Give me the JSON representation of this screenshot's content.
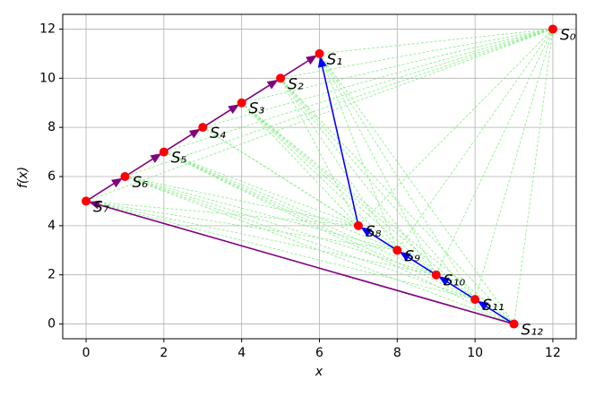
{
  "chart_data": {
    "type": "scatter",
    "x_label": "x",
    "y_label": "f(x)",
    "labels": [
      "S₀",
      "S₁",
      "S₂",
      "S₃",
      "S₄",
      "S₅",
      "S₆",
      "S₇",
      "S₈",
      "S₉",
      "S₁₀",
      "S₁₁",
      "S₁₂"
    ],
    "x": [
      12,
      6,
      5,
      4,
      3,
      2,
      1,
      0,
      7,
      8,
      9,
      10,
      11
    ],
    "y": [
      12,
      11,
      10,
      9,
      8,
      7,
      6,
      5,
      4,
      3,
      2,
      1,
      0
    ],
    "color": "#ff0000",
    "paths": [
      {
        "color": "#800080",
        "points": [
          12,
          7,
          6,
          5,
          4,
          3,
          2,
          1
        ]
      },
      {
        "color": "#0000ff",
        "points": [
          12,
          11,
          10,
          9,
          8,
          1
        ]
      }
    ],
    "edge_color": "#90ee90",
    "xlim": [
      -0.6,
      12.6
    ],
    "ylim": [
      -0.6,
      12.6
    ],
    "xticks": [
      0,
      2,
      4,
      6,
      8,
      10,
      12
    ],
    "yticks": [
      0,
      2,
      4,
      6,
      8,
      10,
      12
    ],
    "grid": true
  }
}
